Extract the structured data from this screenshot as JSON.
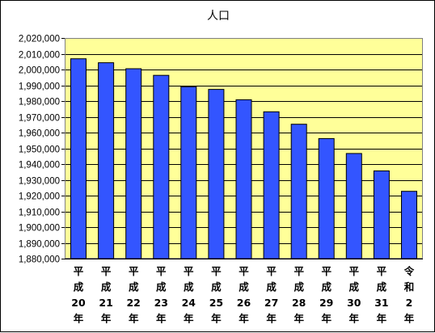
{
  "chart_data": {
    "type": "bar",
    "title": "人口",
    "xlabel": "",
    "ylabel": "",
    "categories": [
      [
        "平",
        "成",
        "20",
        "年"
      ],
      [
        "平",
        "成",
        "21",
        "年"
      ],
      [
        "平",
        "成",
        "22",
        "年"
      ],
      [
        "平",
        "成",
        "23",
        "年"
      ],
      [
        "平",
        "成",
        "24",
        "年"
      ],
      [
        "平",
        "成",
        "25",
        "年"
      ],
      [
        "平",
        "成",
        "26",
        "年"
      ],
      [
        "平",
        "成",
        "27",
        "年"
      ],
      [
        "平",
        "成",
        "28",
        "年"
      ],
      [
        "平",
        "成",
        "29",
        "年"
      ],
      [
        "平",
        "成",
        "30",
        "年"
      ],
      [
        "平",
        "成",
        "31",
        "年"
      ],
      [
        "令",
        "和",
        "2",
        "年"
      ]
    ],
    "values": [
      2006800,
      2004300,
      2000500,
      1996300,
      1989000,
      1987400,
      1980800,
      1973200,
      1965300,
      1956200,
      1946700,
      1935700,
      1922700
    ],
    "ylim": [
      1880000,
      2020000
    ],
    "yticks": [
      1880000,
      1890000,
      1900000,
      1910000,
      1920000,
      1930000,
      1940000,
      1950000,
      1960000,
      1970000,
      1980000,
      1990000,
      2000000,
      2010000,
      2020000
    ],
    "ytick_labels": [
      "1,880,000",
      "1,890,000",
      "1,900,000",
      "1,910,000",
      "1,920,000",
      "1,930,000",
      "1,940,000",
      "1,950,000",
      "1,960,000",
      "1,970,000",
      "1,980,000",
      "1,990,000",
      "2,000,000",
      "2,010,000",
      "2,020,000"
    ],
    "grid": true,
    "legend": "none",
    "colors": {
      "bar": "#3355ff",
      "plot_background": "#ffff99",
      "gridline": "#000000"
    }
  }
}
